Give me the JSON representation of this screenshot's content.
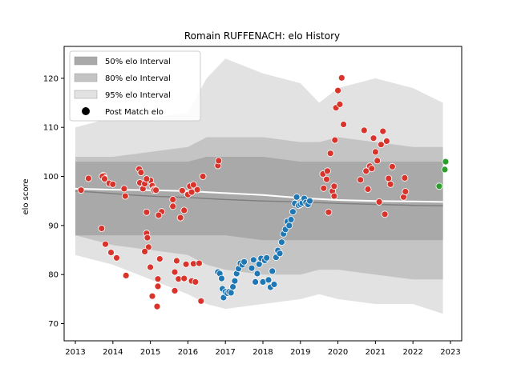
{
  "chart_data": {
    "type": "scatter",
    "title": "Romain RUFFENACH: elo History",
    "xlabel": "",
    "ylabel": "elo score",
    "xlim": [
      2012.7,
      2023.3
    ],
    "ylim": [
      66.5,
      126.5
    ],
    "x_ticks": [
      2013,
      2014,
      2015,
      2016,
      2017,
      2018,
      2019,
      2020,
      2021,
      2022,
      2023
    ],
    "y_ticks": [
      70,
      80,
      90,
      100,
      110,
      120
    ],
    "grid": false,
    "legend_position": "top-left",
    "legend": [
      {
        "label": "50% elo Interval",
        "kind": "band50"
      },
      {
        "label": "80% elo Interval",
        "kind": "band80"
      },
      {
        "label": "95% elo Interval",
        "kind": "band95"
      },
      {
        "label": "Post Match elo",
        "kind": "marker"
      }
    ],
    "colors": {
      "band50": "#a9a9a9",
      "band80": "#c4c4c4",
      "band95": "#e2e2e2",
      "point_red": "#d9342b",
      "point_blue": "#1f77b4",
      "point_green": "#2ca02c",
      "median_line": "#808080",
      "mean_line": "#ffffff"
    },
    "bands": {
      "x": [
        2013.0,
        2014.0,
        2015.0,
        2016.0,
        2016.5,
        2017.0,
        2018.0,
        2019.0,
        2019.5,
        2020.0,
        2021.0,
        2022.0,
        2022.8
      ],
      "band95_upper": [
        110,
        112,
        112,
        113,
        120,
        124,
        121,
        119,
        115,
        118,
        120,
        118,
        115
      ],
      "band95_lower": [
        84,
        82,
        79,
        76,
        74,
        73,
        74,
        75,
        76,
        75,
        74,
        74,
        72
      ],
      "band80_upper": [
        104,
        104,
        105,
        106,
        108,
        108,
        108,
        107,
        107,
        108,
        107,
        106,
        106
      ],
      "band80_lower": [
        88,
        86,
        85,
        84,
        82,
        81,
        80,
        80,
        81,
        81,
        80,
        79,
        79
      ],
      "band50_upper": [
        103,
        103,
        103,
        103,
        104,
        104,
        104,
        103,
        103,
        103,
        103,
        103,
        103
      ],
      "band50_lower": [
        88,
        88,
        88,
        88,
        88,
        88,
        87,
        87,
        87,
        87,
        87,
        87,
        87
      ]
    },
    "median_line": {
      "x": [
        2013.0,
        2013.5,
        2014.0,
        2014.5,
        2015.0,
        2016.0,
        2017.0,
        2018.0,
        2019.0,
        2020.0,
        2021.0,
        2022.0,
        2022.8
      ],
      "y": [
        97.0,
        96.8,
        96.5,
        96.2,
        96.0,
        95.7,
        95.3,
        95.0,
        94.8,
        94.5,
        94.3,
        94.1,
        94.0
      ]
    },
    "mean_line": {
      "x": [
        2013.0,
        2014.0,
        2015.0,
        2016.0,
        2017.0,
        2018.0,
        2019.0,
        2020.0,
        2021.0,
        2022.0,
        2022.8
      ],
      "y": [
        97.5,
        97.3,
        97.2,
        97.0,
        96.6,
        96.2,
        95.6,
        95.2,
        95.0,
        94.9,
        94.8
      ]
    },
    "series": [
      {
        "color_key": "point_red",
        "x": [
          2013.15,
          2013.35,
          2013.7,
          2013.75,
          2013.77,
          2013.8,
          2013.72,
          2013.78,
          2013.9,
          2013.95,
          2014.0,
          2014.1,
          2014.3,
          2014.33,
          2014.35,
          2014.7,
          2014.72,
          2014.75,
          2014.8,
          2014.85,
          2014.9,
          2014.95,
          2015.0,
          2015.05,
          2015.1,
          2014.85,
          2014.9,
          2014.92,
          2015.0,
          2015.05,
          2015.2,
          2015.25,
          2015.3,
          2014.9,
          2015.1,
          2015.15,
          2015.18,
          2015.2,
          2015.22,
          2015.6,
          2015.65,
          2015.7,
          2015.75,
          2015.8,
          2015.85,
          2015.9,
          2015.95,
          2016.0,
          2016.05,
          2016.1,
          2016.15,
          2016.2,
          2016.25,
          2016.3,
          2016.35,
          2015.6,
          2015.65,
          2015.9,
          2016.1,
          2016.15,
          2016.4,
          2016.8,
          2016.82,
          2019.6,
          2019.62,
          2019.7,
          2019.72,
          2019.8,
          2019.85,
          2019.9,
          2019.92,
          2019.95,
          2020.0,
          2020.05,
          2020.1,
          2020.15,
          2019.9,
          2019.75,
          2020.6,
          2020.7,
          2020.75,
          2020.8,
          2020.85,
          2020.9,
          2020.95,
          2021.0,
          2021.05,
          2021.1,
          2021.15,
          2021.2,
          2021.25,
          2021.3,
          2021.35,
          2021.4,
          2021.45,
          2021.75,
          2021.78,
          2021.8
        ],
        "y": [
          97.2,
          99.6,
          89.4,
          100.2,
          99.7,
          86.2,
          100.0,
          99.5,
          98.6,
          84.5,
          98.4,
          83.4,
          97.5,
          96.0,
          79.8,
          101.5,
          98.7,
          100.8,
          97.5,
          98.5,
          92.7,
          85.6,
          99.2,
          98.1,
          97.4,
          84.7,
          88.4,
          87.5,
          81.5,
          75.6,
          79.1,
          83.2,
          92.8,
          99.5,
          97.2,
          97.2,
          73.5,
          77.6,
          92.1,
          93.9,
          80.5,
          82.8,
          79.1,
          91.6,
          97.1,
          79.2,
          82.1,
          96.3,
          98.0,
          78.7,
          82.2,
          78.5,
          97.3,
          82.3,
          74.6,
          95.3,
          76.7,
          93.1,
          96.8,
          98.3,
          100.0,
          102.2,
          103.2,
          100.5,
          97.6,
          99.4,
          101.1,
          104.7,
          97.0,
          98.0,
          107.4,
          114.0,
          117.5,
          114.7,
          120.1,
          110.6,
          96.0,
          92.7,
          99.3,
          109.4,
          101.1,
          97.4,
          102.1,
          101.6,
          107.8,
          105.0,
          103.2,
          94.8,
          106.5,
          109.2,
          92.3,
          107.2,
          99.6,
          98.4,
          102.0,
          95.8,
          99.7,
          96.9
        ]
      },
      {
        "color_key": "point_blue",
        "x": [
          2016.8,
          2016.85,
          2016.9,
          2016.92,
          2016.95,
          2017.0,
          2017.05,
          2017.1,
          2017.15,
          2017.2,
          2017.25,
          2017.3,
          2017.35,
          2017.4,
          2017.45,
          2017.5,
          2017.7,
          2017.75,
          2017.8,
          2017.85,
          2017.9,
          2017.95,
          2018.0,
          2018.05,
          2018.1,
          2018.15,
          2018.2,
          2018.25,
          2018.3,
          2018.35,
          2018.4,
          2018.45,
          2018.5,
          2018.55,
          2018.6,
          2018.65,
          2018.7,
          2018.75,
          2018.8,
          2018.85,
          2018.9,
          2018.95,
          2019.0,
          2019.05,
          2019.1,
          2019.15,
          2019.2,
          2019.25
        ],
        "y": [
          80.5,
          80.2,
          79.2,
          77.1,
          75.3,
          76.5,
          76.2,
          76.5,
          76.3,
          77.5,
          78.7,
          80.2,
          81.2,
          82.3,
          82.0,
          82.6,
          81.3,
          83.0,
          78.5,
          80.2,
          82.1,
          83.3,
          78.5,
          82.9,
          83.4,
          78.9,
          77.4,
          80.7,
          78.0,
          83.5,
          84.9,
          84.3,
          86.6,
          88.3,
          89.2,
          90.8,
          90.0,
          91.2,
          92.8,
          94.5,
          95.8,
          94.1,
          94.3,
          94.6,
          95.5,
          94.7,
          94.3,
          95.0
        ]
      },
      {
        "color_key": "point_green",
        "x": [
          2022.7,
          2022.85,
          2022.87
        ],
        "y": [
          98.0,
          101.4,
          103.0
        ]
      }
    ]
  }
}
